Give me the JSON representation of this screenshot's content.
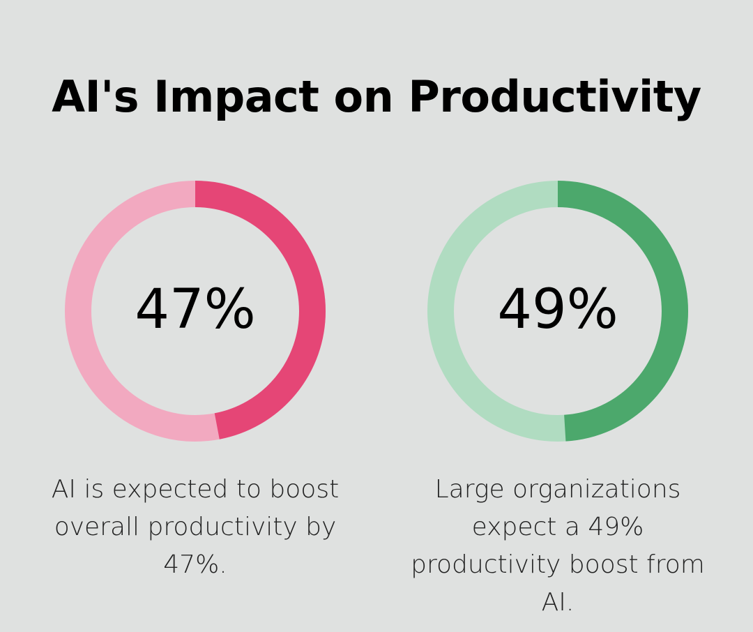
{
  "title": "AI's Impact on Productivity",
  "chart_data": [
    {
      "type": "pie",
      "value_percent": 47,
      "label": "47%",
      "caption": "AI is expected to boost overall productivity by 47%.",
      "colors": {
        "filled": "#e54676",
        "remaining": "#f2a9c0"
      }
    },
    {
      "type": "pie",
      "value_percent": 49,
      "label": "49%",
      "caption": "Large organizations expect a 49% productivity boost from AI.",
      "colors": {
        "filled": "#4ca86c",
        "remaining": "#b0dcc1"
      }
    }
  ]
}
